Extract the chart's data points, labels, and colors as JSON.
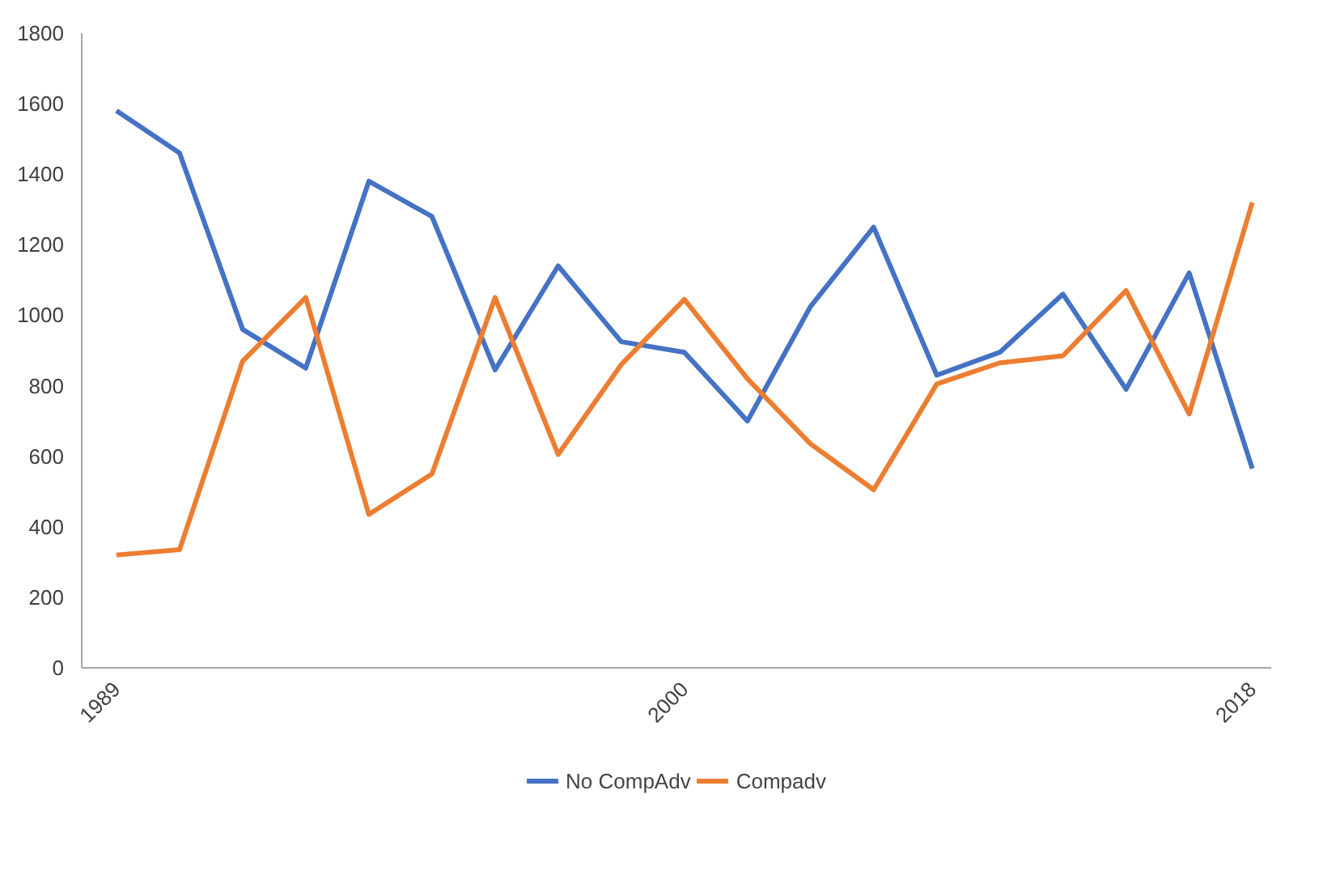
{
  "chart_data": {
    "type": "line",
    "categories": [
      "1989",
      null,
      null,
      null,
      null,
      null,
      null,
      null,
      null,
      "2000",
      null,
      null,
      null,
      null,
      null,
      null,
      null,
      null,
      "2018"
    ],
    "series": [
      {
        "name": "No CompAdv",
        "color": "#4472c4",
        "values": [
          1580,
          1460,
          960,
          850,
          1380,
          1280,
          845,
          1140,
          925,
          895,
          700,
          1025,
          1250,
          830,
          895,
          1060,
          790,
          1120,
          565
        ]
      },
      {
        "name": "Compadv",
        "color": "#ed7d31",
        "values": [
          320,
          335,
          870,
          1050,
          435,
          550,
          1050,
          605,
          860,
          1045,
          820,
          635,
          505,
          805,
          865,
          885,
          1070,
          720,
          1320
        ]
      }
    ],
    "ylim": [
      0,
      1800
    ],
    "yticks": [
      0,
      200,
      400,
      600,
      800,
      1000,
      1200,
      1400,
      1600,
      1800
    ],
    "grid": false,
    "legend": "bottom",
    "marker": "none",
    "line_style": "solid"
  }
}
